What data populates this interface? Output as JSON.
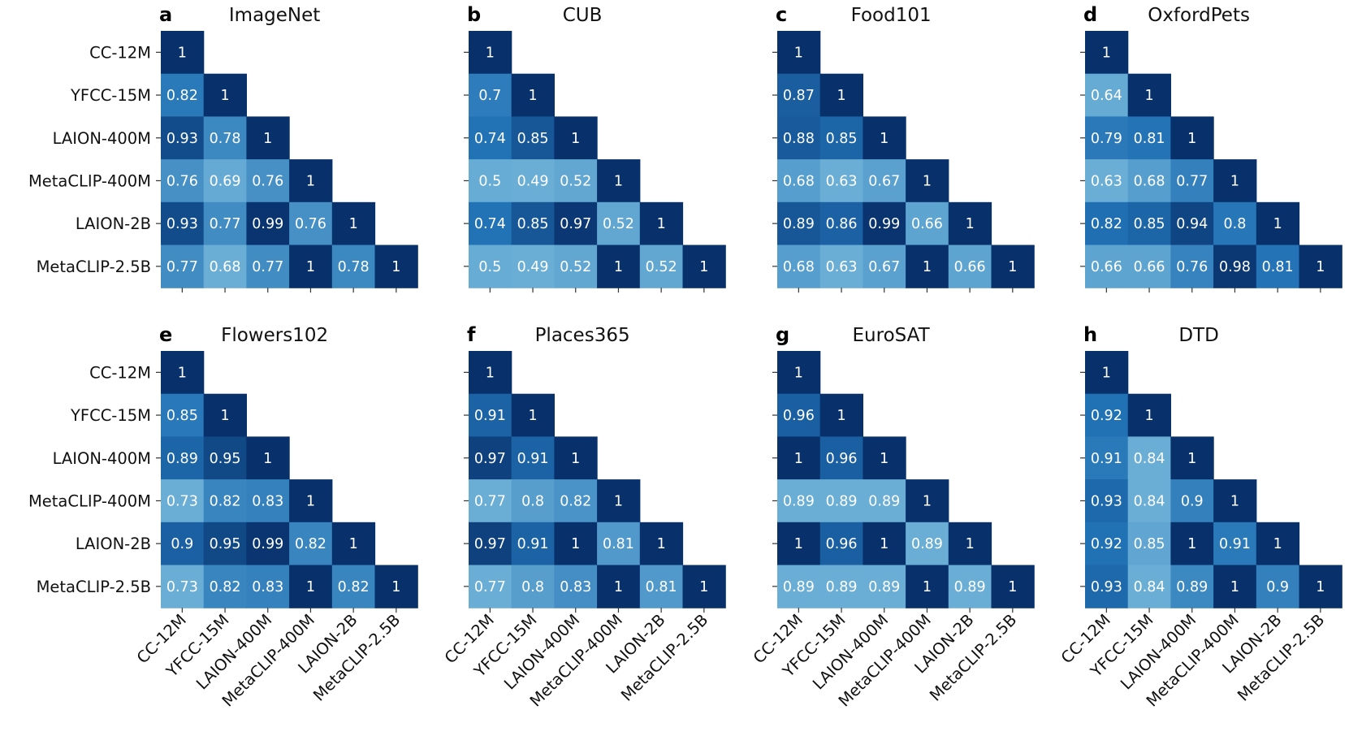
{
  "chart_data": [
    {
      "panel": "a",
      "title": "ImageNet",
      "type": "heatmap",
      "labels": [
        "CC-12M",
        "YFCC-15M",
        "LAION-400M",
        "MetaCLIP-400M",
        "LAION-2B",
        "MetaCLIP-2.5B"
      ],
      "matrix": [
        [
          "1"
        ],
        [
          "0.82",
          "1"
        ],
        [
          "0.93",
          "0.78",
          "1"
        ],
        [
          "0.76",
          "0.69",
          "0.76",
          "1"
        ],
        [
          "0.93",
          "0.77",
          "0.99",
          "0.76",
          "1"
        ],
        [
          "0.77",
          "0.68",
          "0.77",
          "1",
          "0.78",
          "1"
        ]
      ]
    },
    {
      "panel": "b",
      "title": "CUB",
      "type": "heatmap",
      "labels": [
        "CC-12M",
        "YFCC-15M",
        "LAION-400M",
        "MetaCLIP-400M",
        "LAION-2B",
        "MetaCLIP-2.5B"
      ],
      "matrix": [
        [
          "1"
        ],
        [
          "0.7",
          "1"
        ],
        [
          "0.74",
          "0.85",
          "1"
        ],
        [
          "0.5",
          "0.49",
          "0.52",
          "1"
        ],
        [
          "0.74",
          "0.85",
          "0.97",
          "0.52",
          "1"
        ],
        [
          "0.5",
          "0.49",
          "0.52",
          "1",
          "0.52",
          "1"
        ]
      ]
    },
    {
      "panel": "c",
      "title": "Food101",
      "type": "heatmap",
      "labels": [
        "CC-12M",
        "YFCC-15M",
        "LAION-400M",
        "MetaCLIP-400M",
        "LAION-2B",
        "MetaCLIP-2.5B"
      ],
      "matrix": [
        [
          "1"
        ],
        [
          "0.87",
          "1"
        ],
        [
          "0.88",
          "0.85",
          "1"
        ],
        [
          "0.68",
          "0.63",
          "0.67",
          "1"
        ],
        [
          "0.89",
          "0.86",
          "0.99",
          "0.66",
          "1"
        ],
        [
          "0.68",
          "0.63",
          "0.67",
          "1",
          "0.66",
          "1"
        ]
      ]
    },
    {
      "panel": "d",
      "title": "OxfordPets",
      "type": "heatmap",
      "labels": [
        "CC-12M",
        "YFCC-15M",
        "LAION-400M",
        "MetaCLIP-400M",
        "LAION-2B",
        "MetaCLIP-2.5B"
      ],
      "matrix": [
        [
          "1"
        ],
        [
          "0.64",
          "1"
        ],
        [
          "0.79",
          "0.81",
          "1"
        ],
        [
          "0.63",
          "0.68",
          "0.77",
          "1"
        ],
        [
          "0.82",
          "0.85",
          "0.94",
          "0.8",
          "1"
        ],
        [
          "0.66",
          "0.66",
          "0.76",
          "0.98",
          "0.81",
          "1"
        ]
      ]
    },
    {
      "panel": "e",
      "title": "Flowers102",
      "type": "heatmap",
      "labels": [
        "CC-12M",
        "YFCC-15M",
        "LAION-400M",
        "MetaCLIP-400M",
        "LAION-2B",
        "MetaCLIP-2.5B"
      ],
      "matrix": [
        [
          "1"
        ],
        [
          "0.85",
          "1"
        ],
        [
          "0.89",
          "0.95",
          "1"
        ],
        [
          "0.73",
          "0.82",
          "0.83",
          "1"
        ],
        [
          "0.9",
          "0.95",
          "0.99",
          "0.82",
          "1"
        ],
        [
          "0.73",
          "0.82",
          "0.83",
          "1",
          "0.82",
          "1"
        ]
      ]
    },
    {
      "panel": "f",
      "title": "Places365",
      "type": "heatmap",
      "labels": [
        "CC-12M",
        "YFCC-15M",
        "LAION-400M",
        "MetaCLIP-400M",
        "LAION-2B",
        "MetaCLIP-2.5B"
      ],
      "matrix": [
        [
          "1"
        ],
        [
          "0.91",
          "1"
        ],
        [
          "0.97",
          "0.91",
          "1"
        ],
        [
          "0.77",
          "0.8",
          "0.82",
          "1"
        ],
        [
          "0.97",
          "0.91",
          "1",
          "0.81",
          "1"
        ],
        [
          "0.77",
          "0.8",
          "0.83",
          "1",
          "0.81",
          "1"
        ]
      ]
    },
    {
      "panel": "g",
      "title": "EuroSAT",
      "type": "heatmap",
      "labels": [
        "CC-12M",
        "YFCC-15M",
        "LAION-400M",
        "MetaCLIP-400M",
        "LAION-2B",
        "MetaCLIP-2.5B"
      ],
      "matrix": [
        [
          "1"
        ],
        [
          "0.96",
          "1"
        ],
        [
          "1",
          "0.96",
          "1"
        ],
        [
          "0.89",
          "0.89",
          "0.89",
          "1"
        ],
        [
          "1",
          "0.96",
          "1",
          "0.89",
          "1"
        ],
        [
          "0.89",
          "0.89",
          "0.89",
          "1",
          "0.89",
          "1"
        ]
      ]
    },
    {
      "panel": "h",
      "title": "DTD",
      "type": "heatmap",
      "labels": [
        "CC-12M",
        "YFCC-15M",
        "LAION-400M",
        "MetaCLIP-400M",
        "LAION-2B",
        "MetaCLIP-2.5B"
      ],
      "matrix": [
        [
          "1"
        ],
        [
          "0.92",
          "1"
        ],
        [
          "0.91",
          "0.84",
          "1"
        ],
        [
          "0.93",
          "0.84",
          "0.9",
          "1"
        ],
        [
          "0.92",
          "0.85",
          "1",
          "0.91",
          "1"
        ],
        [
          "0.93",
          "0.84",
          "0.89",
          "1",
          "0.9",
          "1"
        ]
      ]
    }
  ],
  "colors": {
    "scale_low": "#6aaed6",
    "scale_mid": "#2171b5",
    "scale_high": "#08306b",
    "cell_text": "#ffffff"
  }
}
